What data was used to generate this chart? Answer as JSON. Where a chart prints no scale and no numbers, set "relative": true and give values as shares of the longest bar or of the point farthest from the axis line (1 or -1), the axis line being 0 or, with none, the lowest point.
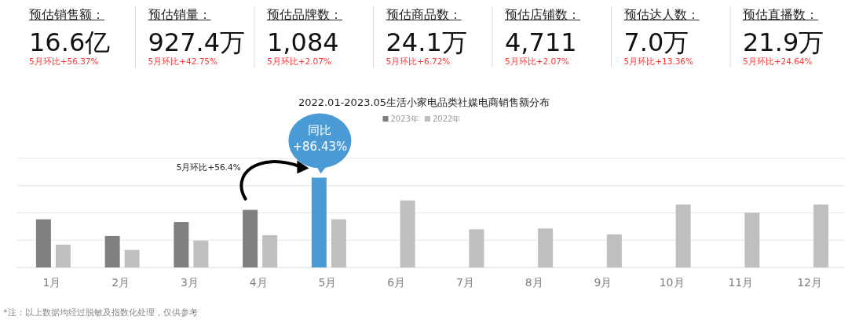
{
  "chart_data": [
    {
      "type": "other",
      "annotations": [
        "预估销售额：",
        "16.6亿",
        "5月环比+56.37%",
        "预估销量：",
        "927.4万",
        "5月环比+42.75%",
        "预估品牌数：",
        "1,084",
        "5月环比+2.07%",
        "预估商品数：",
        "24.1万",
        "5月环比+6.72%",
        "预估店铺数：",
        "4,711",
        "5月环比+2.07%",
        "预估达人数：",
        "7.0万",
        "5月环比+13.36%",
        "预估直播数：",
        "21.9万",
        "5月环比+24.64%"
      ]
    },
    {
      "type": "bar",
      "title": "2022.01-2023.05生活小家电品类社媒电商销售额分布",
      "relative": true,
      "grid": "y",
      "legend": "top",
      "categories": [
        "1月",
        "2月",
        "3月",
        "4月",
        "5月",
        "6月",
        "7月",
        "8月",
        "9月",
        "10月",
        "11月",
        "12月"
      ],
      "series": [
        {
          "name": "2023年",
          "color": "#7f7f7f",
          "colors": [
            "#7f7f7f",
            "#7f7f7f",
            "#7f7f7f",
            "#7f7f7f",
            "#4a9bd5",
            null,
            null,
            null,
            null,
            null,
            null,
            null
          ],
          "values": [
            0.536,
            0.35,
            0.506,
            0.641,
            1,
            null,
            null,
            null,
            null,
            null,
            null,
            null
          ]
        },
        {
          "name": "2022年",
          "color": "#bfbfbf",
          "values": [
            0.254,
            0.195,
            0.299,
            0.359,
            0.536,
            0.746,
            0.425,
            0.434,
            0.368,
            0.701,
            0.611,
            0.701
          ]
        }
      ],
      "annotations": [
        "同比\n+86.43%",
        "5月环比+56.4%",
        "*注：以上数据均经过脱敏及指数化处理，仅供参考"
      ]
    }
  ]
}
